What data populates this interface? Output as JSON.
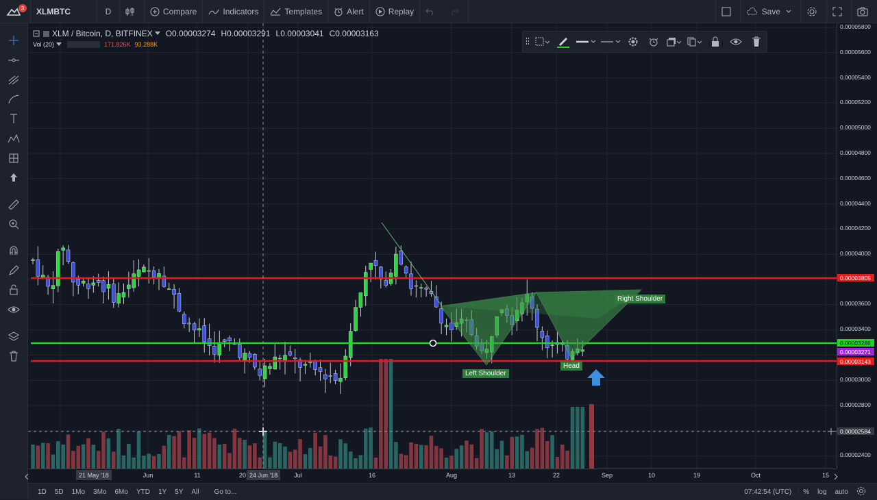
{
  "toolbar": {
    "notification_count": "3",
    "symbol": "XLMBTC",
    "interval": "D",
    "compare_label": "Compare",
    "indicators_label": "Indicators",
    "templates_label": "Templates",
    "alert_label": "Alert",
    "replay_label": "Replay",
    "save_label": "Save"
  },
  "legend": {
    "title": "XLM / Bitcoin, D, BITFINEX",
    "open": "O0.00003274",
    "high": "H0.00003291",
    "low": "L0.00003041",
    "close": "C0.00003163",
    "vol_label": "Vol (20)",
    "vol_value_1": "171.826K",
    "vol_value_2": "93.288K"
  },
  "price_scale": {
    "labels": [
      "0.00005800",
      "0.00005600",
      "0.00005400",
      "0.00005200",
      "0.00005000",
      "0.00004800",
      "0.00004600",
      "0.00004400",
      "0.00004200",
      "0.00004000",
      "0.00003600",
      "0.00003400",
      "0.00003000",
      "0.00002800",
      "0.00002400"
    ],
    "tags": {
      "resistance": "0.00003805",
      "neckline": "0.00003286",
      "last_price": "0.00003271",
      "support": "0.00003143",
      "crosshair": "0.00002584"
    },
    "top_label": "0.00005800"
  },
  "time_scale": {
    "labels": [
      "Jun",
      "11",
      "20",
      "Jul",
      "16",
      "Aug",
      "13",
      "22",
      "Sep",
      "10",
      "19",
      "Oct",
      "15"
    ],
    "tag_left": "21 May '18",
    "tag_cross": "24 Jun '18"
  },
  "annotations": {
    "left_shoulder": "Left Shoulder",
    "head": "Head",
    "right_shoulder": "Right Shoulder"
  },
  "bottom_bar": {
    "ranges": [
      "1D",
      "5D",
      "1Mo",
      "3Mo",
      "6Mo",
      "YTD",
      "1Y",
      "5Y",
      "All"
    ],
    "goto": "Go to...",
    "time": "07:42:54 (UTC)",
    "percent": "%",
    "log": "log",
    "auto": "auto"
  },
  "colors": {
    "background": "#131722",
    "up": "#26d93a",
    "down": "#3b4fe0",
    "resistance_line": "#e01e1e",
    "neckline": "#1ed81e",
    "pattern_fill": "#3f9a4a",
    "arrow": "#3d8fe0"
  }
}
